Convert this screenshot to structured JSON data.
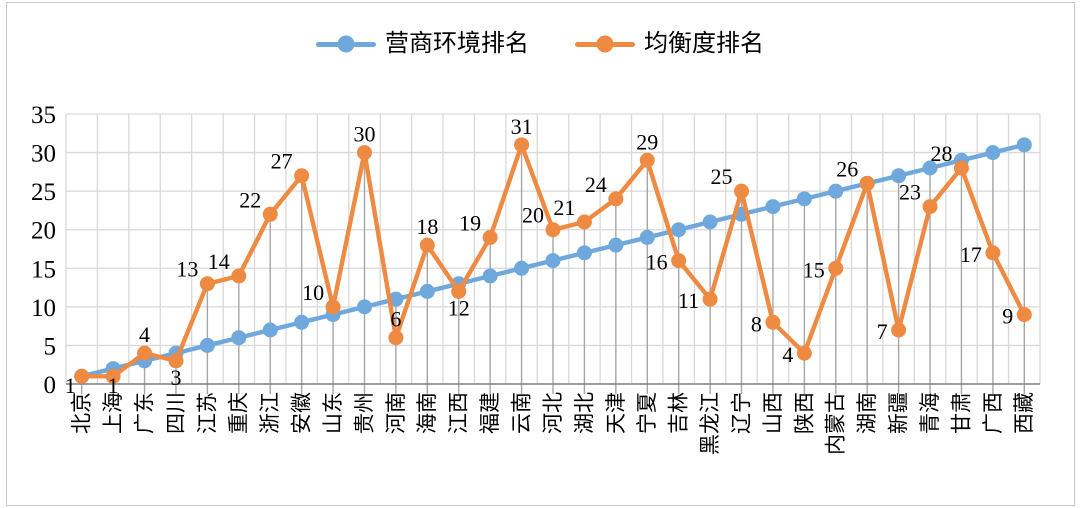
{
  "chart_data": {
    "type": "line",
    "title": "",
    "xlabel": "",
    "ylabel": "",
    "categories": [
      "北京",
      "上海",
      "广东",
      "四川",
      "江苏",
      "重庆",
      "浙江",
      "安徽",
      "山东",
      "贵州",
      "河南",
      "海南",
      "江西",
      "福建",
      "云南",
      "河北",
      "湖北",
      "天津",
      "宁夏",
      "吉林",
      "黑龙江",
      "辽宁",
      "山西",
      "陕西",
      "内蒙古",
      "湖南",
      "新疆",
      "青海",
      "甘肃",
      "广西",
      "西藏"
    ],
    "series": [
      {
        "name": "营商环境排名",
        "color": "#6fa8dc",
        "marker": "circle",
        "show_labels": false,
        "values": [
          1,
          2,
          3,
          4,
          5,
          6,
          7,
          8,
          9,
          10,
          11,
          12,
          13,
          14,
          15,
          16,
          17,
          18,
          19,
          20,
          21,
          22,
          23,
          24,
          25,
          26,
          27,
          28,
          29,
          30,
          31
        ]
      },
      {
        "name": "均衡度排名",
        "color": "#ee8a42",
        "marker": "circle",
        "show_labels": true,
        "values": [
          1,
          1,
          4,
          3,
          13,
          14,
          22,
          27,
          10,
          30,
          6,
          18,
          12,
          19,
          31,
          20,
          21,
          24,
          29,
          16,
          11,
          25,
          8,
          4,
          15,
          26,
          7,
          23,
          28,
          17,
          9
        ]
      }
    ],
    "ylim": [
      0,
      35
    ],
    "yticks": [
      0,
      5,
      10,
      15,
      20,
      25,
      30,
      35
    ],
    "grid": true,
    "drop_lines": true,
    "legend_position": "top",
    "grid_color": "#d9d9d9",
    "drop_line_color": "#a6a6a6",
    "axis_color": "#7f7f7f",
    "label_color": "#000000"
  }
}
